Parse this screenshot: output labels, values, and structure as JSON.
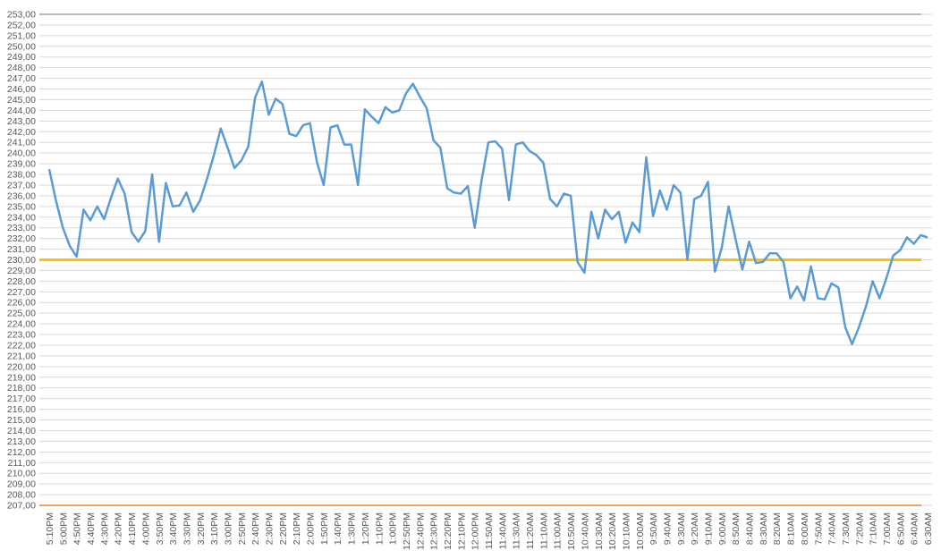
{
  "chart_data": {
    "type": "line",
    "categories": [
      "5:10PM",
      null,
      "5:00PM",
      null,
      "4:50PM",
      null,
      "4:40PM",
      null,
      "4:30PM",
      null,
      "4:20PM",
      null,
      "4:10PM",
      null,
      "4:00PM",
      null,
      "3:50PM",
      null,
      "3:40PM",
      null,
      "3:30PM",
      null,
      "3:20PM",
      null,
      "3:10PM",
      null,
      "3:00PM",
      null,
      "2:50PM",
      null,
      "2:40PM",
      null,
      "2:30PM",
      null,
      "2:20PM",
      null,
      "2:10PM",
      null,
      "2:00PM",
      null,
      "1:50PM",
      null,
      "1:40PM",
      null,
      "1:30PM",
      null,
      "1:20PM",
      null,
      "1:10PM",
      null,
      "1:00PM",
      null,
      "12:50PM",
      null,
      "12:40PM",
      null,
      "12:30PM",
      null,
      "12:20PM",
      null,
      "12:10PM",
      null,
      "12:00PM",
      null,
      "11:50AM",
      null,
      "11:40AM",
      null,
      "11:30AM",
      null,
      "11:20AM",
      null,
      "11:10AM",
      null,
      "11:00AM",
      null,
      "10:50AM",
      null,
      "10:40AM",
      null,
      "10:30AM",
      null,
      "10:20AM",
      null,
      "10:10AM",
      null,
      "10:00AM",
      null,
      "9:50AM",
      null,
      "9:40AM",
      null,
      "9:30AM",
      null,
      "9:20AM",
      null,
      "9:10AM",
      null,
      "9:00AM",
      null,
      "8:50AM",
      null,
      "8:40AM",
      null,
      "8:30AM",
      null,
      "8:20AM",
      null,
      "8:10AM",
      null,
      "8:00AM",
      null,
      "7:50AM",
      null,
      "7:40AM",
      null,
      "7:30AM",
      null,
      "7:20AM",
      null,
      "7:10AM",
      null,
      "7:00AM",
      null,
      "6:50AM",
      null,
      "6:40AM",
      null,
      "6:30AM"
    ],
    "series": [
      {
        "color": "#5b9bd5",
        "values": [
          238.5,
          235.5,
          233,
          231.3,
          230.3,
          234.7,
          233.7,
          235,
          233.8,
          235.8,
          237.6,
          236.2,
          232.6,
          231.7,
          232.7,
          238,
          231.7,
          237.2,
          235,
          235.1,
          236.3,
          234.5,
          235.6,
          237.6,
          239.8,
          242.3,
          240.5,
          238.6,
          239.3,
          240.6,
          245.2,
          246.7,
          243.6,
          245.1,
          244.6,
          241.8,
          241.6,
          242.6,
          242.8,
          239.2,
          237,
          242.4,
          242.6,
          240.8,
          240.8,
          237,
          244.1,
          243.4,
          242.8,
          244.3,
          243.8,
          244,
          245.6,
          246.5,
          245.3,
          244.2,
          241.2,
          240.5,
          236.7,
          236.3,
          236.2,
          236.9,
          233,
          237.4,
          241,
          241.1,
          240.4,
          235.6,
          240.8,
          241,
          240.2,
          239.8,
          239.1,
          235.7,
          235,
          236.2,
          236,
          229.8,
          228.8,
          234.5,
          232,
          234.7,
          233.8,
          234.5,
          231.6,
          233.5,
          232.6,
          239.6,
          234.1,
          236.5,
          234.7,
          237,
          236.3,
          230,
          235.7,
          236,
          237.3,
          228.9,
          231.1,
          235,
          232,
          229.1,
          231.7,
          229.7,
          229.8,
          230.6,
          230.6,
          229.8,
          226.4,
          227.5,
          226.2,
          229.4,
          226.4,
          226.3,
          227.8,
          227.4,
          223.7,
          222.1,
          223.7,
          225.6,
          228,
          226.4,
          228.3,
          230.4,
          230.9,
          232.1,
          231.5,
          232.3,
          232.1
        ]
      }
    ],
    "reference_lines": [
      {
        "value": 253,
        "color": "#a5a5a5"
      },
      {
        "value": 230,
        "color": "#ffc000"
      },
      {
        "value": 207,
        "color": "#ed7d31"
      }
    ],
    "ylim": [
      207,
      253
    ],
    "yticks": [
      {
        "value": 207,
        "label": "207,00"
      },
      {
        "value": 208,
        "label": "208,00"
      },
      {
        "value": 209,
        "label": "209,00"
      },
      {
        "value": 210,
        "label": "210,00"
      },
      {
        "value": 211,
        "label": "211,00"
      },
      {
        "value": 212,
        "label": "212,00"
      },
      {
        "value": 213,
        "label": "213,00"
      },
      {
        "value": 214,
        "label": "214,00"
      },
      {
        "value": 215,
        "label": "215,00"
      },
      {
        "value": 216,
        "label": "216,00"
      },
      {
        "value": 217,
        "label": "217,00"
      },
      {
        "value": 218,
        "label": "218,00"
      },
      {
        "value": 219,
        "label": "219,00"
      },
      {
        "value": 220,
        "label": "220,00"
      },
      {
        "value": 221,
        "label": "221,00"
      },
      {
        "value": 222,
        "label": "222,00"
      },
      {
        "value": 223,
        "label": "223,00"
      },
      {
        "value": 224,
        "label": "224,00"
      },
      {
        "value": 225,
        "label": "225,00"
      },
      {
        "value": 226,
        "label": "226,00"
      },
      {
        "value": 227,
        "label": "227,00"
      },
      {
        "value": 228,
        "label": "228,00"
      },
      {
        "value": 229,
        "label": "229,00"
      },
      {
        "value": 230,
        "label": "230,00"
      },
      {
        "value": 231,
        "label": "231,00"
      },
      {
        "value": 232,
        "label": "232,00"
      },
      {
        "value": 233,
        "label": "233,00"
      },
      {
        "value": 234,
        "label": "234,00"
      },
      {
        "value": 235,
        "label": "235,00"
      },
      {
        "value": 236,
        "label": "236,00"
      },
      {
        "value": 237,
        "label": "237,00"
      },
      {
        "value": 238,
        "label": "238,00"
      },
      {
        "value": 239,
        "label": "239,00"
      },
      {
        "value": 240,
        "label": "240,00"
      },
      {
        "value": 241,
        "label": "241,00"
      },
      {
        "value": 242,
        "label": "242,00"
      },
      {
        "value": 243,
        "label": "243,00"
      },
      {
        "value": 244,
        "label": "244,00"
      },
      {
        "value": 245,
        "label": "245,00"
      },
      {
        "value": 246,
        "label": "246,00"
      },
      {
        "value": 247,
        "label": "247,00"
      },
      {
        "value": 248,
        "label": "248,00"
      },
      {
        "value": 249,
        "label": "249,00"
      },
      {
        "value": 250,
        "label": "250,00"
      },
      {
        "value": 251,
        "label": "251,00"
      },
      {
        "value": 252,
        "label": "252,00"
      },
      {
        "value": 253,
        "label": "253,00"
      }
    ],
    "grid": true
  }
}
